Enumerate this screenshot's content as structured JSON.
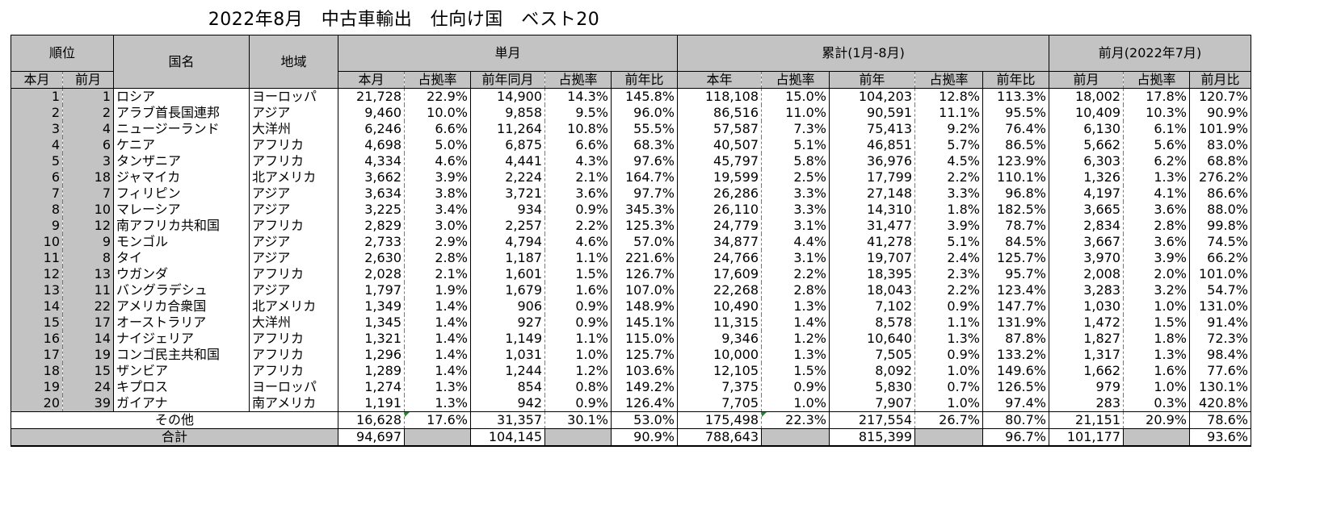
{
  "title": "2022年8月　中古車輸出　仕向け国　ベスト20",
  "headers": {
    "rank": "順位",
    "country": "国名",
    "region": "地域",
    "monthly": "単月",
    "cumulative": "累計(1月-8月)",
    "prev_month_group": "前月(2022年7月)",
    "rank_current": "本月",
    "rank_prev": "前月",
    "m_current": "本月",
    "m_share1": "占拠率",
    "m_prev_year": "前年同月",
    "m_share2": "占拠率",
    "m_yoy": "前年比",
    "c_this_year": "本年",
    "c_share1": "占拠率",
    "c_prev_year": "前年",
    "c_share2": "占拠率",
    "c_yoy": "前年比",
    "p_prev_month": "前月",
    "p_share": "占拠率",
    "p_mom": "前月比"
  },
  "rows": [
    [
      "1",
      "1",
      "ロシア",
      "ヨーロッパ",
      "21,728",
      "22.9%",
      "14,900",
      "14.3%",
      "145.8%",
      "118,108",
      "15.0%",
      "104,203",
      "12.8%",
      "113.3%",
      "18,002",
      "17.8%",
      "120.7%"
    ],
    [
      "2",
      "2",
      "アラブ首長国連邦",
      "アジア",
      "9,460",
      "10.0%",
      "9,858",
      "9.5%",
      "96.0%",
      "86,516",
      "11.0%",
      "90,591",
      "11.1%",
      "95.5%",
      "10,409",
      "10.3%",
      "90.9%"
    ],
    [
      "3",
      "4",
      "ニュージーランド",
      "大洋州",
      "6,246",
      "6.6%",
      "11,264",
      "10.8%",
      "55.5%",
      "57,587",
      "7.3%",
      "75,413",
      "9.2%",
      "76.4%",
      "6,130",
      "6.1%",
      "101.9%"
    ],
    [
      "4",
      "6",
      "ケニア",
      "アフリカ",
      "4,698",
      "5.0%",
      "6,875",
      "6.6%",
      "68.3%",
      "40,507",
      "5.1%",
      "46,851",
      "5.7%",
      "86.5%",
      "5,662",
      "5.6%",
      "83.0%"
    ],
    [
      "5",
      "3",
      "タンザニア",
      "アフリカ",
      "4,334",
      "4.6%",
      "4,441",
      "4.3%",
      "97.6%",
      "45,797",
      "5.8%",
      "36,976",
      "4.5%",
      "123.9%",
      "6,303",
      "6.2%",
      "68.8%"
    ],
    [
      "6",
      "18",
      "ジャマイカ",
      "北アメリカ",
      "3,662",
      "3.9%",
      "2,224",
      "2.1%",
      "164.7%",
      "19,599",
      "2.5%",
      "17,799",
      "2.2%",
      "110.1%",
      "1,326",
      "1.3%",
      "276.2%"
    ],
    [
      "7",
      "7",
      "フィリピン",
      "アジア",
      "3,634",
      "3.8%",
      "3,721",
      "3.6%",
      "97.7%",
      "26,286",
      "3.3%",
      "27,148",
      "3.3%",
      "96.8%",
      "4,197",
      "4.1%",
      "86.6%"
    ],
    [
      "8",
      "10",
      "マレーシア",
      "アジア",
      "3,225",
      "3.4%",
      "934",
      "0.9%",
      "345.3%",
      "26,110",
      "3.3%",
      "14,310",
      "1.8%",
      "182.5%",
      "3,665",
      "3.6%",
      "88.0%"
    ],
    [
      "9",
      "12",
      "南アフリカ共和国",
      "アフリカ",
      "2,829",
      "3.0%",
      "2,257",
      "2.2%",
      "125.3%",
      "24,779",
      "3.1%",
      "31,477",
      "3.9%",
      "78.7%",
      "2,834",
      "2.8%",
      "99.8%"
    ],
    [
      "10",
      "9",
      "モンゴル",
      "アジア",
      "2,733",
      "2.9%",
      "4,794",
      "4.6%",
      "57.0%",
      "34,877",
      "4.4%",
      "41,278",
      "5.1%",
      "84.5%",
      "3,667",
      "3.6%",
      "74.5%"
    ],
    [
      "11",
      "8",
      "タイ",
      "アジア",
      "2,630",
      "2.8%",
      "1,187",
      "1.1%",
      "221.6%",
      "24,766",
      "3.1%",
      "19,707",
      "2.4%",
      "125.7%",
      "3,970",
      "3.9%",
      "66.2%"
    ],
    [
      "12",
      "13",
      "ウガンダ",
      "アフリカ",
      "2,028",
      "2.1%",
      "1,601",
      "1.5%",
      "126.7%",
      "17,609",
      "2.2%",
      "18,395",
      "2.3%",
      "95.7%",
      "2,008",
      "2.0%",
      "101.0%"
    ],
    [
      "13",
      "11",
      "バングラデシュ",
      "アジア",
      "1,797",
      "1.9%",
      "1,679",
      "1.6%",
      "107.0%",
      "22,268",
      "2.8%",
      "18,043",
      "2.2%",
      "123.4%",
      "3,283",
      "3.2%",
      "54.7%"
    ],
    [
      "14",
      "22",
      "アメリカ合衆国",
      "北アメリカ",
      "1,349",
      "1.4%",
      "906",
      "0.9%",
      "148.9%",
      "10,490",
      "1.3%",
      "7,102",
      "0.9%",
      "147.7%",
      "1,030",
      "1.0%",
      "131.0%"
    ],
    [
      "15",
      "17",
      "オーストラリア",
      "大洋州",
      "1,345",
      "1.4%",
      "927",
      "0.9%",
      "145.1%",
      "11,315",
      "1.4%",
      "8,578",
      "1.1%",
      "131.9%",
      "1,472",
      "1.5%",
      "91.4%"
    ],
    [
      "16",
      "14",
      "ナイジェリア",
      "アフリカ",
      "1,321",
      "1.4%",
      "1,149",
      "1.1%",
      "115.0%",
      "9,346",
      "1.2%",
      "10,640",
      "1.3%",
      "87.8%",
      "1,827",
      "1.8%",
      "72.3%"
    ],
    [
      "17",
      "19",
      "コンゴ民主共和国",
      "アフリカ",
      "1,296",
      "1.4%",
      "1,031",
      "1.0%",
      "125.7%",
      "10,000",
      "1.3%",
      "7,505",
      "0.9%",
      "133.2%",
      "1,317",
      "1.3%",
      "98.4%"
    ],
    [
      "18",
      "15",
      "ザンビア",
      "アフリカ",
      "1,289",
      "1.4%",
      "1,244",
      "1.2%",
      "103.6%",
      "12,105",
      "1.5%",
      "8,092",
      "1.0%",
      "149.6%",
      "1,662",
      "1.6%",
      "77.6%"
    ],
    [
      "19",
      "24",
      "キプロス",
      "ヨーロッパ",
      "1,274",
      "1.3%",
      "854",
      "0.8%",
      "149.2%",
      "7,375",
      "0.9%",
      "5,830",
      "0.7%",
      "126.5%",
      "979",
      "1.0%",
      "130.1%"
    ],
    [
      "20",
      "39",
      "ガイアナ",
      "南アメリカ",
      "1,191",
      "1.3%",
      "942",
      "0.9%",
      "126.4%",
      "7,705",
      "1.0%",
      "7,907",
      "1.0%",
      "97.4%",
      "283",
      "0.3%",
      "420.8%"
    ]
  ],
  "other": {
    "label": "その他",
    "values": [
      "16,628",
      "17.6%",
      "31,357",
      "30.1%",
      "53.0%",
      "175,498",
      "22.3%",
      "217,554",
      "26.7%",
      "80.7%",
      "21,151",
      "20.9%",
      "78.6%"
    ]
  },
  "total": {
    "label": "合計",
    "values": [
      "94,697",
      "",
      "104,145",
      "",
      "90.9%",
      "788,643",
      "",
      "815,399",
      "",
      "96.7%",
      "101,177",
      "",
      "93.6%"
    ]
  }
}
